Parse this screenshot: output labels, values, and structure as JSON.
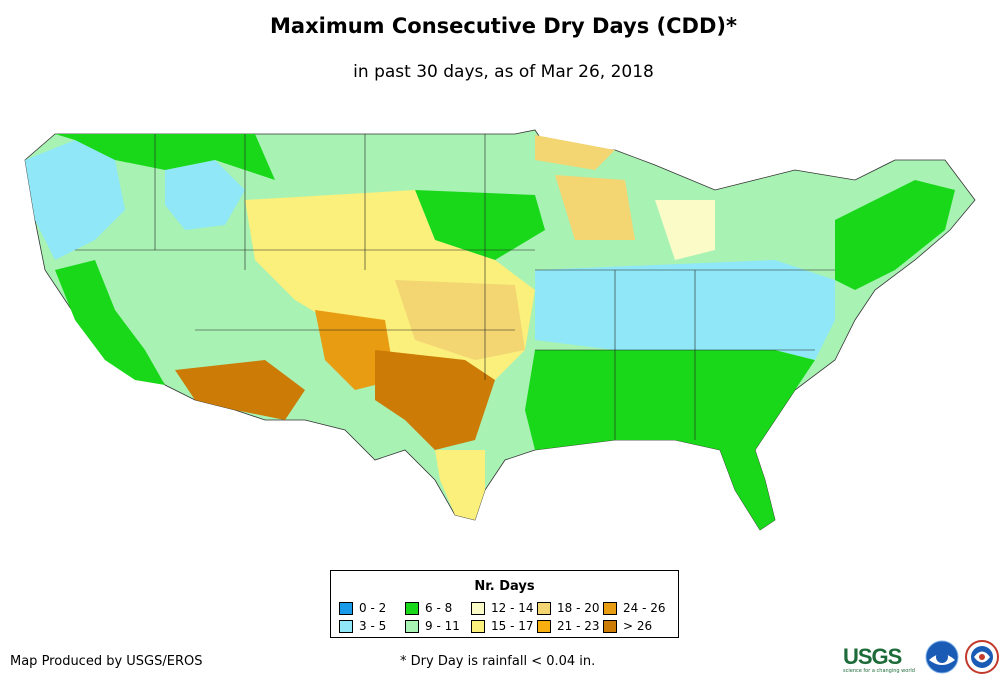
{
  "title": "Maximum Consecutive Dry Days (CDD)*",
  "subtitle": "in past 30 days, as of Mar 26, 2018",
  "legend": {
    "title": "Nr. Days",
    "items": [
      {
        "label": "0 - 2",
        "color": "#1a9bea"
      },
      {
        "label": "3 - 5",
        "color": "#8fe7f7"
      },
      {
        "label": "6 - 8",
        "color": "#19d819"
      },
      {
        "label": "9 - 11",
        "color": "#a8f2b4"
      },
      {
        "label": "12 - 14",
        "color": "#fbfbc8"
      },
      {
        "label": "15 - 17",
        "color": "#fbf07c"
      },
      {
        "label": "18 - 20",
        "color": "#f3d572"
      },
      {
        "label": "21 - 23",
        "color": "#f7b00f"
      },
      {
        "label": "24 - 26",
        "color": "#e89c11"
      },
      {
        "label": "> 26",
        "color": "#cc7b06"
      }
    ]
  },
  "footer": {
    "credit": "Map Produced by USGS/EROS",
    "footnote": "* Dry Day is rainfall < 0.04 in.",
    "usgs_logo": "USGS",
    "usgs_tagline": "science for a changing world"
  }
}
